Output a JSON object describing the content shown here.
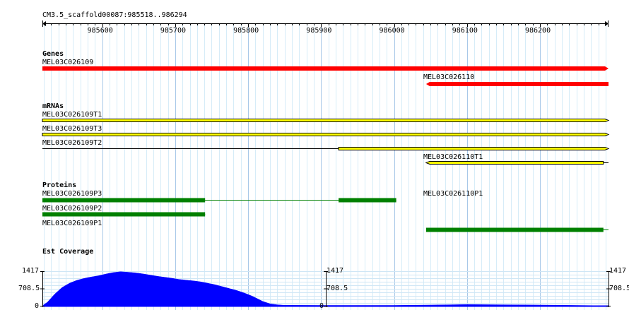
{
  "browser": {
    "region_label": "CM3.5_scaffold00087:985518..986294",
    "ruler": {
      "start": 985518,
      "end": 986294,
      "ticks": [
        "985600",
        "985700",
        "985800",
        "985900",
        "986000",
        "986100",
        "986200"
      ]
    }
  },
  "tracks": {
    "genes": {
      "title": "Genes",
      "color": "#ff0000",
      "features": [
        {
          "name": "MEL03C026109",
          "start": 985518,
          "end": 986294,
          "strand": "+"
        },
        {
          "name": "MEL03C026110",
          "start": 986044,
          "end": 986294,
          "strand": "-"
        }
      ]
    },
    "mrnas": {
      "title": "mRNAs",
      "color": "#ffff00",
      "features": [
        {
          "name": "MEL03C026109T1",
          "start": 985518,
          "end": 986294,
          "strand": "+",
          "blocks": [
            [
              985518,
              986294
            ]
          ]
        },
        {
          "name": "MEL03C026109T3",
          "start": 985518,
          "end": 986294,
          "strand": "+",
          "blocks": [
            [
              985518,
              986294
            ]
          ]
        },
        {
          "name": "MEL03C026109T2",
          "start": 985518,
          "end": 986294,
          "strand": "+",
          "blocks": [
            [
              985924,
              986294
            ]
          ]
        },
        {
          "name": "MEL03C026110T1",
          "start": 986044,
          "end": 986294,
          "strand": "-",
          "blocks": [
            [
              986044,
              986287
            ]
          ]
        }
      ]
    },
    "proteins": {
      "title": "Proteins",
      "color": "#008000",
      "features": [
        {
          "name": "MEL03C026109P3",
          "start": 985518,
          "end": 985741,
          "blocks": [
            [
              985518,
              985741
            ]
          ]
        },
        {
          "name": "MEL03C026109P2",
          "start": 985518,
          "end": 986003,
          "blocks": [
            [
              985924,
              986003
            ]
          ]
        },
        {
          "name": "MEL03C026109P1",
          "start": 985518,
          "end": 985741,
          "blocks": [
            [
              985518,
              985741
            ]
          ]
        },
        {
          "name": "MEL03C026110P1",
          "start": 986044,
          "end": 986294,
          "blocks": [
            [
              986044,
              986287
            ]
          ]
        }
      ]
    },
    "est_coverage": {
      "title": "Est Coverage",
      "color": "#0000ff",
      "axis_labels": [
        "1417",
        "708.5",
        "0"
      ],
      "max": 1417,
      "profile": {
        "positions": [
          985518,
          985525,
          985535,
          985545,
          985555,
          985565,
          985575,
          985585,
          985595,
          985605,
          985615,
          985625,
          985635,
          985645,
          985655,
          985665,
          985675,
          985685,
          985695,
          985705,
          985715,
          985725,
          985735,
          985745,
          985755,
          985765,
          985775,
          985785,
          985795,
          985805,
          985812,
          985820,
          985830,
          985840,
          985850,
          985900,
          985950,
          986000,
          986050,
          986100,
          986150,
          986200,
          986250,
          986294
        ],
        "values": [
          0,
          150,
          480,
          750,
          920,
          1040,
          1120,
          1180,
          1230,
          1300,
          1360,
          1395,
          1375,
          1350,
          1310,
          1260,
          1210,
          1170,
          1130,
          1080,
          1050,
          1020,
          980,
          920,
          860,
          780,
          700,
          620,
          520,
          400,
          300,
          180,
          80,
          40,
          20,
          15,
          15,
          15,
          30,
          50,
          40,
          30,
          15,
          0
        ]
      }
    }
  }
}
